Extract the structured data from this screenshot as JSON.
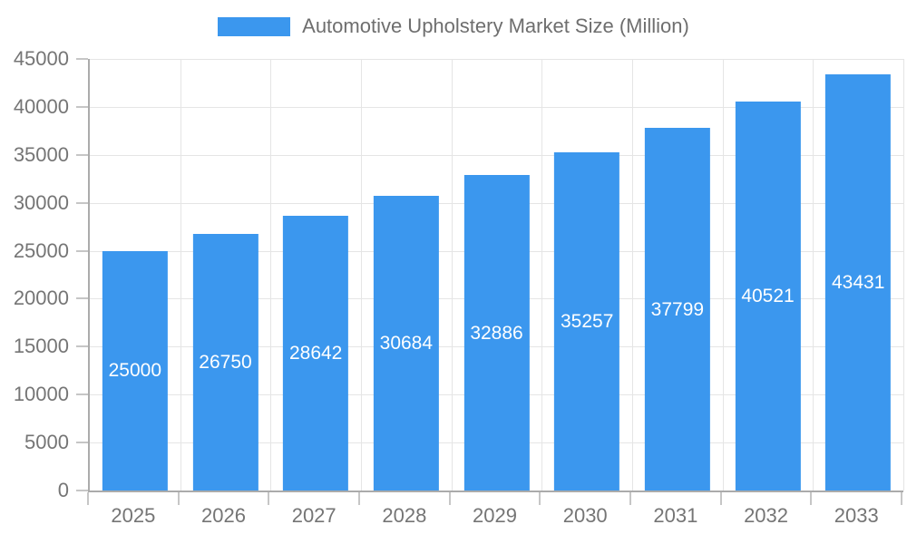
{
  "chart_data": {
    "type": "bar",
    "title": "Automotive Upholstery Market Size (Million)",
    "categories": [
      "2025",
      "2026",
      "2027",
      "2028",
      "2029",
      "2030",
      "2031",
      "2032",
      "2033"
    ],
    "values": [
      25000,
      26750,
      28642,
      30684,
      32886,
      35257,
      37799,
      40521,
      43431
    ],
    "xlabel": "",
    "ylabel": "",
    "ylim": [
      0,
      45000
    ],
    "ytick_step": 5000,
    "ytick_labels": [
      "0",
      "5000",
      "10000",
      "15000",
      "20000",
      "25000",
      "30000",
      "35000",
      "40000",
      "45000"
    ],
    "grid": true,
    "legend_position": "top-center",
    "bar_labels_inside": true,
    "colors": {
      "bar": "#3B97EE",
      "bar_label": "#FFFFFF",
      "axis_label": "#757575",
      "legend_text": "#6E6E6E",
      "gridline": "#E5E5E5",
      "axis_line": "#ABABAB",
      "tick_mark": "#C6C6C6",
      "background": "#FFFFFF"
    }
  }
}
